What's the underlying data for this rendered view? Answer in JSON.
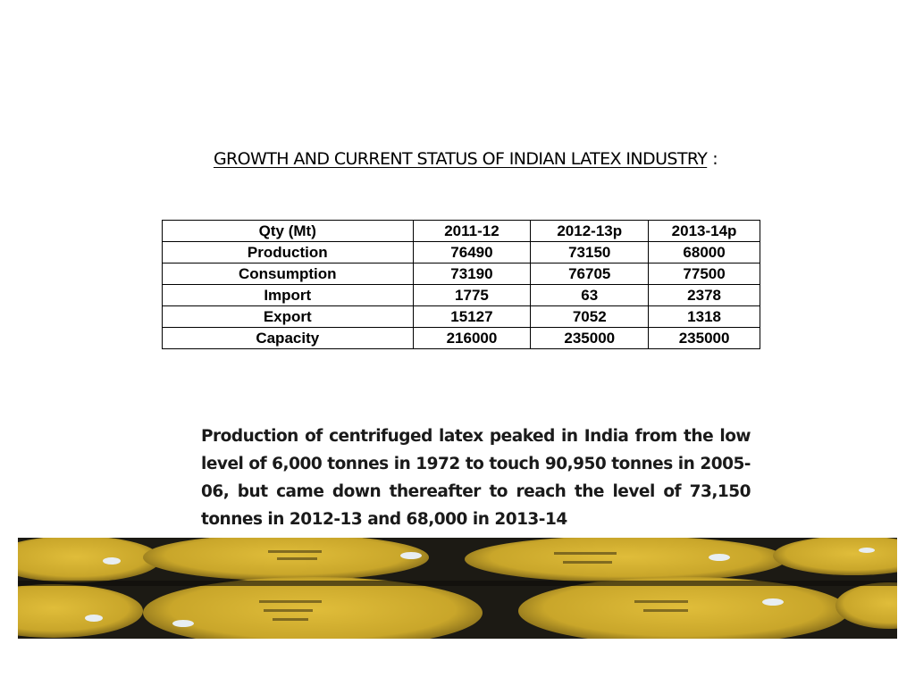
{
  "title": {
    "heading": "GROWTH AND CURRENT STATUS OF INDIAN LATEX INDUSTRY",
    "suffix": ":"
  },
  "table": {
    "headers": [
      "Qty (Mt)",
      "2011-12",
      "2012-13p",
      "2013-14p"
    ],
    "rows": [
      [
        "Production",
        "76490",
        "73150",
        "68000"
      ],
      [
        "Consumption",
        "73190",
        "76705",
        "77500"
      ],
      [
        "Import",
        "1775",
        "63",
        "2378"
      ],
      [
        "Export",
        "15127",
        "7052",
        "1318"
      ],
      [
        "Capacity",
        "216000",
        "235000",
        "235000"
      ]
    ]
  },
  "paragraph": "Production of centrifuged latex peaked in India from the low level of 6,000 tonnes in 1972 to touch 90,950 tonnes in 2005-06, but came down thereafter to reach the level of 73,150 tonnes in 2012-13 and 68,000 in 2013-14",
  "photo": {
    "subject": "yellow-latex-drums"
  },
  "colors": {
    "drum_yellow": "#c9a62a",
    "drum_shadow": "#1c1a14",
    "text": "#000000"
  }
}
